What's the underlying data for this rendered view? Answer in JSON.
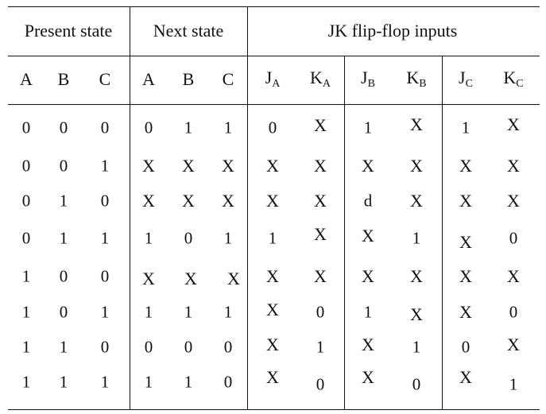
{
  "groups": [
    {
      "label": "Present state"
    },
    {
      "label": "Next state"
    },
    {
      "label": "JK flip-flop inputs"
    }
  ],
  "columns": [
    {
      "main": "A",
      "sub": ""
    },
    {
      "main": "B",
      "sub": ""
    },
    {
      "main": "C",
      "sub": ""
    },
    {
      "main": "A",
      "sub": ""
    },
    {
      "main": "B",
      "sub": ""
    },
    {
      "main": "C",
      "sub": ""
    },
    {
      "main": "J",
      "sub": "A"
    },
    {
      "main": "K",
      "sub": "A"
    },
    {
      "main": "J",
      "sub": "B"
    },
    {
      "main": "K",
      "sub": "B"
    },
    {
      "main": "J",
      "sub": "C"
    },
    {
      "main": "K",
      "sub": "C"
    }
  ],
  "rows": [
    [
      "0",
      "0",
      "0",
      "0",
      "1",
      "1",
      "0",
      "X",
      "1",
      "X",
      "1",
      "X"
    ],
    [
      "0",
      "0",
      "1",
      "X",
      "X",
      "X",
      "X",
      "X",
      "X",
      "X",
      "X",
      "X"
    ],
    [
      "0",
      "1",
      "0",
      "X",
      "X",
      "X",
      "X",
      "X",
      "d",
      "X",
      "X",
      "X"
    ],
    [
      "0",
      "1",
      "1",
      "1",
      "0",
      "1",
      "1",
      "X",
      "X",
      "1",
      "X",
      "0"
    ],
    [
      "1",
      "0",
      "0",
      "X",
      "X",
      "X",
      "X",
      "X",
      "X",
      "X",
      "X",
      "X"
    ],
    [
      "1",
      "0",
      "1",
      "1",
      "1",
      "1",
      "X",
      "0",
      "1",
      "X",
      "X",
      "0"
    ],
    [
      "1",
      "1",
      "0",
      "0",
      "0",
      "0",
      "X",
      "1",
      "X",
      "1",
      "0",
      "X"
    ],
    [
      "1",
      "1",
      "1",
      "1",
      "1",
      "0",
      "X",
      "0",
      "X",
      "0",
      "X",
      "1"
    ]
  ]
}
